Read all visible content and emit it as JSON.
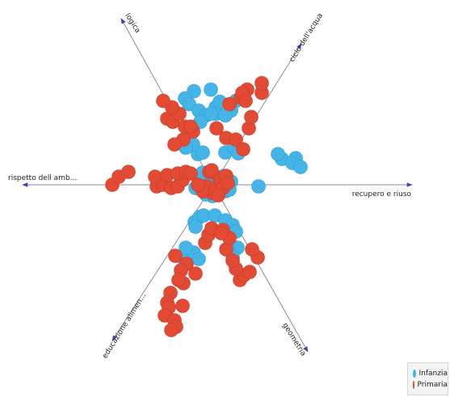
{
  "chart_data": {
    "type": "scatter",
    "subtype": "radial-cluster-map",
    "title": "",
    "axes": [
      {
        "label": "logica",
        "direction": "up-left"
      },
      {
        "label": "ciclo dell'acqua",
        "direction": "up-right"
      },
      {
        "label": "rispetto dell amb...",
        "direction": "left"
      },
      {
        "label": "recupero e riuso",
        "direction": "right"
      },
      {
        "label": "educazione alimen...",
        "direction": "down-left"
      },
      {
        "label": "geometria",
        "direction": "down-right"
      }
    ],
    "legend": {
      "placement": "bottom-right"
    },
    "series": [
      {
        "name": "Infanzia",
        "color": "#45b5e8",
        "points": [
          [
            -24,
            116
          ],
          [
            -3,
            118
          ],
          [
            -35,
            107
          ],
          [
            -30,
            100
          ],
          [
            3,
            96
          ],
          [
            8,
            103
          ],
          [
            -18,
            92
          ],
          [
            -9,
            86
          ],
          [
            -16,
            78
          ],
          [
            3,
            88
          ],
          [
            28,
            104
          ],
          [
            22,
            92
          ],
          [
            15,
            86
          ],
          [
            -3,
            88
          ],
          [
            -19,
            38
          ],
          [
            -13,
            40
          ],
          [
            -25,
            50
          ],
          [
            -34,
            46
          ],
          [
            15,
            40
          ],
          [
            26,
            46
          ],
          [
            31,
            39
          ],
          [
            102,
            33
          ],
          [
            85,
            32
          ],
          [
            98,
            27
          ],
          [
            108,
            22
          ],
          [
            80,
            38
          ],
          [
            -16,
            8
          ],
          [
            -5,
            4
          ],
          [
            -11,
            -4
          ],
          [
            -22,
            -4
          ],
          [
            -1,
            -3
          ],
          [
            15,
            -8
          ],
          [
            8,
            4
          ],
          [
            4,
            10
          ],
          [
            -8,
            14
          ],
          [
            22,
            4
          ],
          [
            13,
            11
          ],
          [
            -4,
            -11
          ],
          [
            -1,
            -14
          ],
          [
            6,
            -12
          ],
          [
            20,
            -6
          ],
          [
            -19,
            10
          ],
          [
            -13,
            15
          ],
          [
            -9,
            -12
          ],
          [
            56,
            -2
          ],
          [
            -23,
            -46
          ],
          [
            -17,
            -40
          ],
          [
            -12,
            -38
          ],
          [
            2,
            -38
          ],
          [
            -22,
            -52
          ],
          [
            15,
            -44
          ],
          [
            24,
            -50
          ],
          [
            28,
            -58
          ],
          [
            -38,
            -90
          ],
          [
            -24,
            -84
          ],
          [
            -18,
            -92
          ],
          [
            -34,
            -78
          ],
          [
            24,
            -84
          ],
          [
            30,
            -78
          ],
          [
            24,
            -90
          ],
          [
            18,
            -80
          ]
        ]
      },
      {
        "name": "Primaria",
        "color": "#e24a33",
        "points": [
          [
            -47,
            -88
          ],
          [
            -33,
            -98
          ],
          [
            -40,
            -106
          ],
          [
            -22,
            -110
          ],
          [
            -37,
            -122
          ],
          [
            -43,
            -118
          ],
          [
            -53,
            -134
          ],
          [
            -57,
            -146
          ],
          [
            -55,
            -152
          ],
          [
            -60,
            -162
          ],
          [
            -48,
            -168
          ],
          [
            -46,
            -176
          ],
          [
            -52,
            -180
          ],
          [
            -38,
            -150
          ],
          [
            33,
            -118
          ],
          [
            38,
            -112
          ],
          [
            45,
            -108
          ],
          [
            55,
            -90
          ],
          [
            48,
            -80
          ],
          [
            28,
            -104
          ],
          [
            24,
            -94
          ],
          [
            16,
            -80
          ],
          [
            20,
            -66
          ],
          [
            -10,
            -72
          ],
          [
            -6,
            -62
          ],
          [
            -2,
            -54
          ],
          [
            12,
            -56
          ],
          [
            10,
            -60
          ],
          [
            -70,
            -2
          ],
          [
            -62,
            0
          ],
          [
            -52,
            -4
          ],
          [
            -44,
            -2
          ],
          [
            -38,
            6
          ],
          [
            -72,
            10
          ],
          [
            -57,
            12
          ],
          [
            -44,
            14
          ],
          [
            -34,
            16
          ],
          [
            -28,
            14
          ],
          [
            -125,
            0
          ],
          [
            -117,
            10
          ],
          [
            -105,
            16
          ],
          [
            -9,
            -2
          ],
          [
            2,
            -6
          ],
          [
            7,
            8
          ],
          [
            16,
            11
          ],
          [
            -5,
            16
          ],
          [
            -2,
            -10
          ],
          [
            12,
            -4
          ],
          [
            18,
            2
          ],
          [
            -13,
            -8
          ],
          [
            -2,
            18
          ],
          [
            6,
            -13
          ],
          [
            -19,
            0
          ],
          [
            4,
            70
          ],
          [
            -25,
            66
          ],
          [
            -37,
            56
          ],
          [
            -48,
            50
          ],
          [
            -57,
            82
          ],
          [
            -50,
            78
          ],
          [
            -35,
            72
          ],
          [
            -42,
            88
          ],
          [
            -51,
            96
          ],
          [
            -62,
            104
          ],
          [
            -28,
            72
          ],
          [
            16,
            58
          ],
          [
            28,
            56
          ],
          [
            37,
            44
          ],
          [
            44,
            70
          ],
          [
            47,
            84
          ],
          [
            60,
            114
          ],
          [
            60,
            126
          ],
          [
            34,
            108
          ],
          [
            42,
            118
          ],
          [
            36,
            114
          ],
          [
            40,
            104
          ],
          [
            20,
            100
          ]
        ]
      }
    ]
  }
}
